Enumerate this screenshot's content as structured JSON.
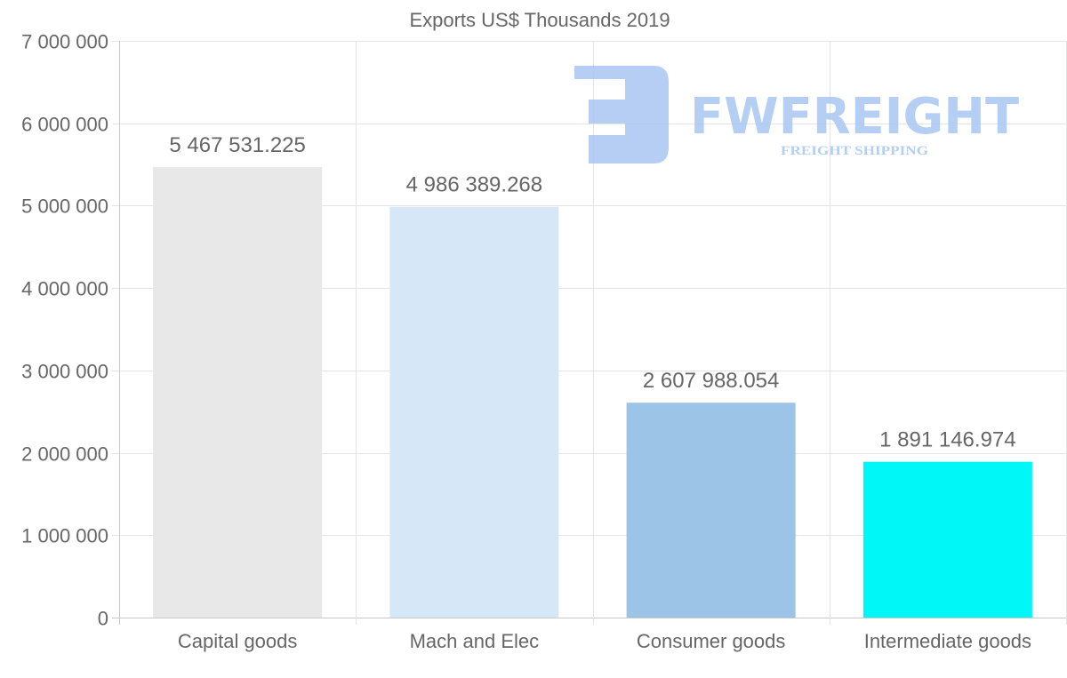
{
  "chart_data": {
    "type": "bar",
    "title": "Exports US$ Thousands 2019",
    "xlabel": "",
    "ylabel": "",
    "categories": [
      "Capital goods",
      "Mach and Elec",
      "Consumer goods",
      "Intermediate goods"
    ],
    "values": [
      5467531.225,
      4986389.268,
      2607988.054,
      1891146.974
    ],
    "value_labels": [
      "5 467 531.225",
      "4 986 389.268",
      "2 607 988.054",
      "1 891 146.974"
    ],
    "colors": [
      "#e8e8e8",
      "#d6e7f8",
      "#9bc4e6",
      "#00f7f7"
    ],
    "ylim": [
      0,
      7000000
    ],
    "yticks": [
      0,
      1000000,
      2000000,
      3000000,
      4000000,
      5000000,
      6000000,
      7000000
    ],
    "ytick_labels": [
      "0",
      "1 000 000",
      "2 000 000",
      "3 000 000",
      "4 000 000",
      "5 000 000",
      "6 000 000",
      "7 000 000"
    ],
    "grid": true,
    "legend": "none"
  },
  "watermark": {
    "brand": "FWFREIGHT",
    "tagline": "FREIGHT SHIPPING",
    "color": "#a9c6f2"
  }
}
